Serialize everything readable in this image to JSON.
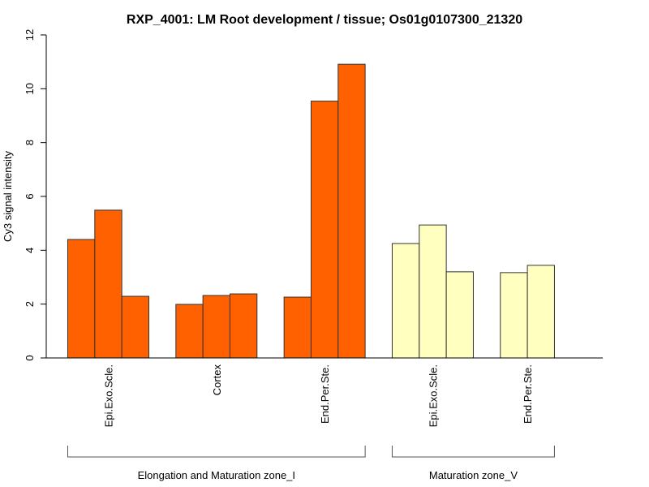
{
  "chart_data": {
    "type": "bar",
    "title": "RXP_4001: LM Root development / tissue; Os01g0107300_21320",
    "xlabel": "",
    "ylabel": "Cy3 signal intensity",
    "ylim": [
      0,
      12
    ],
    "yticks": [
      "0",
      "2",
      "4",
      "6",
      "8",
      "10",
      "12"
    ],
    "grid": false,
    "categories": [
      {
        "label": "Epi.Exo.Scle.",
        "group": 0,
        "values": [
          4.4,
          5.49,
          2.29
        ]
      },
      {
        "label": "Cortex",
        "group": 0,
        "values": [
          1.99,
          2.32,
          2.38
        ]
      },
      {
        "label": "End.Per.Ste.",
        "group": 0,
        "values": [
          2.26,
          9.54,
          10.91
        ]
      },
      {
        "label": "Epi.Exo.Scle.",
        "group": 1,
        "values": [
          4.25,
          4.94,
          3.2
        ]
      },
      {
        "label": "End.Per.Ste.",
        "group": 1,
        "values": [
          3.17,
          3.44
        ]
      }
    ],
    "groups": [
      {
        "label": "Elongation and Maturation zone_I",
        "color": "#ff6000"
      },
      {
        "label": "Maturation zone_V",
        "color": "#ffffc0"
      }
    ]
  }
}
